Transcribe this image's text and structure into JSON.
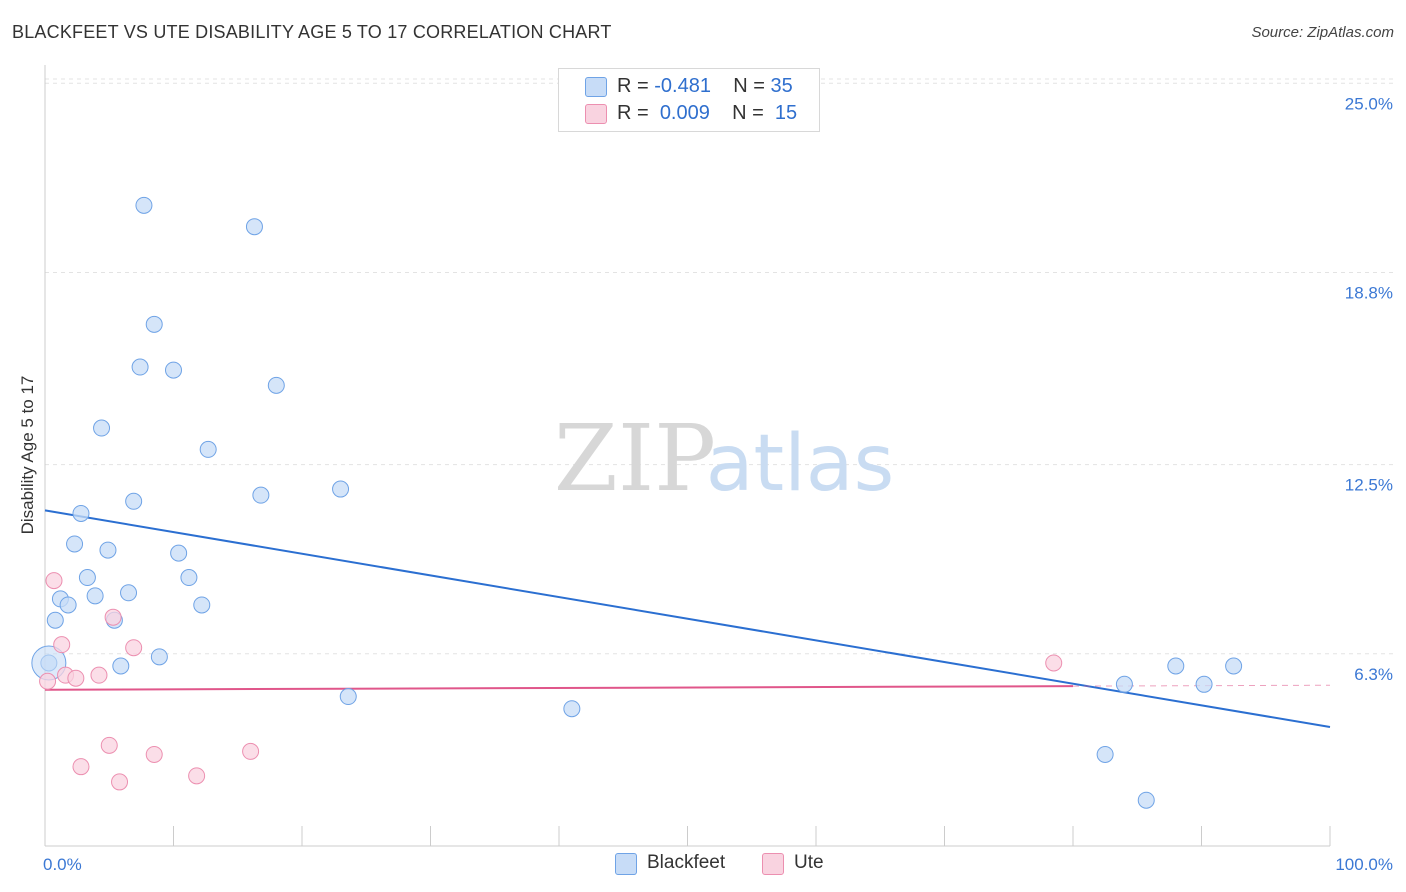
{
  "header": {
    "title": "BLACKFEET VS UTE DISABILITY AGE 5 TO 17 CORRELATION CHART",
    "source": "Source: ZipAtlas.com"
  },
  "legend": {
    "blackfeet": {
      "r_label": "R =",
      "r_value": "-0.481",
      "n_label": "N =",
      "n_value": "35"
    },
    "ute": {
      "r_label": "R =",
      "r_value": "0.009",
      "n_label": "N =",
      "n_value": "15"
    }
  },
  "watermark": {
    "zip": "ZIP",
    "atlas": "atlas"
  },
  "chart_data": {
    "type": "scatter",
    "title": "BLACKFEET VS UTE DISABILITY AGE 5 TO 17 CORRELATION CHART",
    "xlabel": "",
    "ylabel": "Disability Age 5 to 17",
    "xlim": [
      0,
      100
    ],
    "ylim": [
      0,
      25.6
    ],
    "x_tick_labels": [
      "0.0%",
      "100.0%"
    ],
    "y_ticks": [
      6.3,
      12.5,
      18.8,
      25.0
    ],
    "y_tick_labels": [
      "6.3%",
      "12.5%",
      "18.8%",
      "25.0%"
    ],
    "grid": "horizontal dashed",
    "colors": {
      "blackfeet": "#6fa3e6",
      "blackfeet_fill": "#c7dcf7",
      "blackfeet_line": "#2b6fd1",
      "ute": "#ec8fb0",
      "ute_fill": "#f9d3e0",
      "ute_line": "#e0568a",
      "axis": "#cccccc",
      "tick_label": "#3b78d4"
    },
    "series": [
      {
        "name": "Blackfeet",
        "points": [
          [
            0.3,
            6.0
          ],
          [
            0.8,
            7.4
          ],
          [
            1.2,
            8.1
          ],
          [
            1.8,
            7.9
          ],
          [
            2.3,
            9.9
          ],
          [
            2.8,
            10.9
          ],
          [
            3.3,
            8.8
          ],
          [
            3.9,
            8.2
          ],
          [
            4.4,
            13.7
          ],
          [
            4.9,
            9.7
          ],
          [
            5.4,
            7.4
          ],
          [
            5.9,
            5.9
          ],
          [
            6.5,
            8.3
          ],
          [
            6.9,
            11.3
          ],
          [
            7.4,
            15.7
          ],
          [
            7.7,
            21.0
          ],
          [
            8.5,
            17.1
          ],
          [
            8.9,
            6.2
          ],
          [
            10.0,
            15.6
          ],
          [
            10.4,
            9.6
          ],
          [
            11.2,
            8.8
          ],
          [
            12.2,
            7.9
          ],
          [
            12.7,
            13.0
          ],
          [
            16.3,
            20.3
          ],
          [
            16.8,
            11.5
          ],
          [
            18.0,
            15.1
          ],
          [
            23.0,
            11.7
          ],
          [
            23.6,
            4.9
          ],
          [
            41.0,
            4.5
          ],
          [
            82.5,
            3.0
          ],
          [
            84.0,
            5.3
          ],
          [
            85.7,
            1.5
          ],
          [
            88.0,
            5.9
          ],
          [
            90.2,
            5.3
          ],
          [
            92.5,
            5.9
          ]
        ],
        "trend": {
          "x": [
            0,
            100
          ],
          "y": [
            11.0,
            3.9
          ]
        }
      },
      {
        "name": "Ute",
        "points": [
          [
            0.2,
            5.4
          ],
          [
            0.7,
            8.7
          ],
          [
            1.3,
            6.6
          ],
          [
            1.6,
            5.6
          ],
          [
            2.4,
            5.5
          ],
          [
            2.8,
            2.6
          ],
          [
            4.2,
            5.6
          ],
          [
            5.0,
            3.3
          ],
          [
            5.3,
            7.5
          ],
          [
            5.8,
            2.1
          ],
          [
            6.9,
            6.5
          ],
          [
            8.5,
            3.0
          ],
          [
            11.8,
            2.3
          ],
          [
            16.0,
            3.1
          ],
          [
            78.5,
            6.0
          ]
        ],
        "trend": {
          "x": [
            0,
            80
          ],
          "y": [
            5.12,
            5.24
          ],
          "dashed_extension": {
            "x": [
              80,
              100
            ],
            "y": [
              5.24,
              5.27
            ]
          }
        }
      }
    ]
  },
  "bottom_legend": {
    "blackfeet": "Blackfeet",
    "ute": "Ute"
  }
}
